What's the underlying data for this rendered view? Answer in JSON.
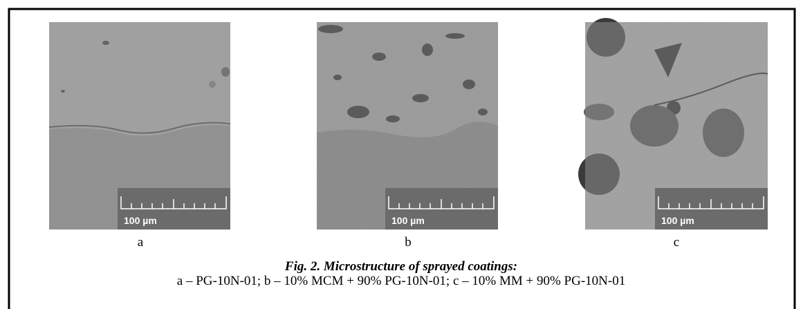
{
  "panels": [
    {
      "scale_label": "100 µm",
      "label": "a"
    },
    {
      "scale_label": "100 µm",
      "label": "b"
    },
    {
      "scale_label": "100 µm",
      "label": "c"
    }
  ],
  "caption": {
    "title": "Fig. 2. Microstructure of sprayed coatings:",
    "text": "a – PG-10N-01; b – 10% MCM + 90% PG-10N-01; c – 10% MM + 90% PG-10N-01"
  }
}
